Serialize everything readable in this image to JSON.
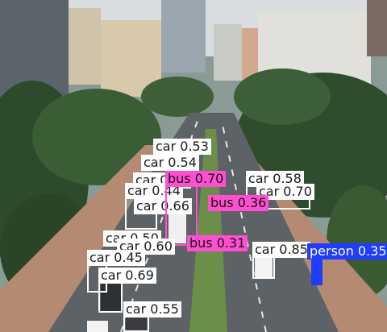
{
  "image": {
    "description_alt": "Aerial city avenue with trees and object-detection boxes",
    "colors": {
      "car": "#ffffff",
      "bus": "#ff4fd0",
      "person": "#1f3cff"
    }
  },
  "detections": [
    {
      "label": "car 0.53"
    },
    {
      "label": "car 0.54"
    },
    {
      "label": "car 0.58"
    },
    {
      "label": "car 0.70"
    },
    {
      "label": "car 0.44"
    },
    {
      "label": "car 0.66"
    },
    {
      "label": "bus 0.70"
    },
    {
      "label": "bus 0.36"
    },
    {
      "label": "car 0.50"
    },
    {
      "label": "car 0.60"
    },
    {
      "label": "bus 0.31"
    },
    {
      "label": "car 0.45"
    },
    {
      "label": "car 0.69"
    },
    {
      "label": "car 0.85"
    },
    {
      "label": "person 0.35"
    },
    {
      "label": "car 0.55"
    }
  ]
}
